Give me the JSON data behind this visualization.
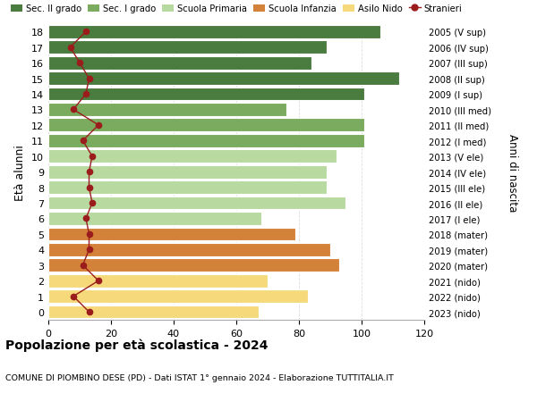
{
  "ages": [
    18,
    17,
    16,
    15,
    14,
    13,
    12,
    11,
    10,
    9,
    8,
    7,
    6,
    5,
    4,
    3,
    2,
    1,
    0
  ],
  "bar_values": [
    106,
    89,
    84,
    112,
    101,
    76,
    101,
    101,
    92,
    89,
    89,
    95,
    68,
    79,
    90,
    93,
    70,
    83,
    67
  ],
  "bar_colors": [
    "#4a7c3f",
    "#4a7c3f",
    "#4a7c3f",
    "#4a7c3f",
    "#4a7c3f",
    "#7aab5e",
    "#7aab5e",
    "#7aab5e",
    "#b8d9a0",
    "#b8d9a0",
    "#b8d9a0",
    "#b8d9a0",
    "#b8d9a0",
    "#d4823a",
    "#d4823a",
    "#d4823a",
    "#f5d97a",
    "#f5d97a",
    "#f5d97a"
  ],
  "stranieri_values": [
    12,
    7,
    10,
    13,
    12,
    8,
    16,
    11,
    14,
    13,
    13,
    14,
    12,
    13,
    13,
    11,
    16,
    8,
    13
  ],
  "right_labels": [
    "2005 (V sup)",
    "2006 (IV sup)",
    "2007 (III sup)",
    "2008 (II sup)",
    "2009 (I sup)",
    "2010 (III med)",
    "2011 (II med)",
    "2012 (I med)",
    "2013 (V ele)",
    "2014 (IV ele)",
    "2015 (III ele)",
    "2016 (II ele)",
    "2017 (I ele)",
    "2018 (mater)",
    "2019 (mater)",
    "2020 (mater)",
    "2021 (nido)",
    "2022 (nido)",
    "2023 (nido)"
  ],
  "legend_labels": [
    "Sec. II grado",
    "Sec. I grado",
    "Scuola Primaria",
    "Scuola Infanzia",
    "Asilo Nido",
    "Stranieri"
  ],
  "legend_colors": [
    "#4a7c3f",
    "#7aab5e",
    "#b8d9a0",
    "#d4823a",
    "#f5d97a",
    "#9b1c1c"
  ],
  "ylabel": "Età alunni",
  "right_ylabel": "Anni di nascita",
  "title": "Popolazione per età scolastica - 2024",
  "subtitle": "COMUNE DI PIOMBINO DESE (PD) - Dati ISTAT 1° gennaio 2024 - Elaborazione TUTTITALIA.IT",
  "xlim": [
    0,
    120
  ],
  "xticks": [
    0,
    20,
    40,
    60,
    80,
    100,
    120
  ],
  "bar_height": 0.85,
  "stranieri_color": "#9b1c1c",
  "bg_color": "#ffffff",
  "grid_color": "#dddddd"
}
